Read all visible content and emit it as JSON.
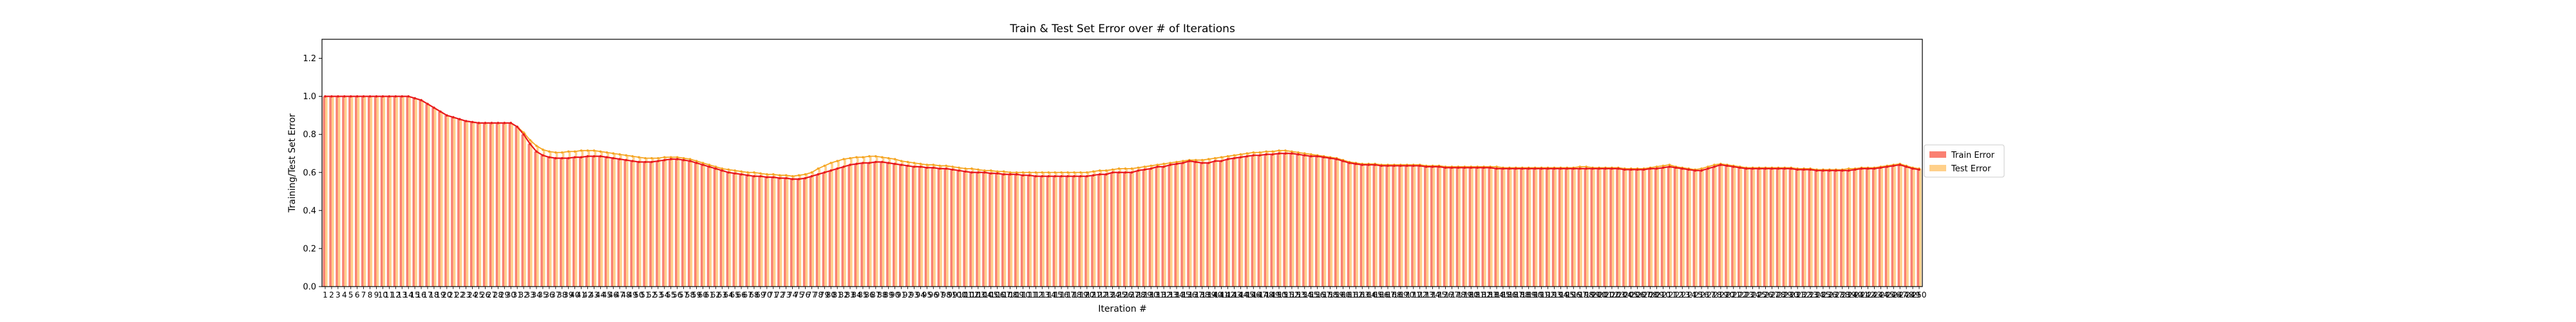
{
  "chart_data": {
    "type": "bar",
    "title": "Train & Test Set Error over # of Iterations",
    "xlabel": "Iteration #",
    "ylabel": "Training/Test Set Error",
    "ylim": [
      0,
      1.3
    ],
    "yticks": [
      "0.0",
      "0.2",
      "0.4",
      "0.6",
      "0.8",
      "1.0",
      "1.2"
    ],
    "grid": false,
    "legend_position": "right",
    "categories_range": [
      1,
      250
    ],
    "series": [
      {
        "name": "Train Error",
        "bar_color": "#fa8072",
        "line_color": "#e8191e",
        "values": [
          1.0,
          1.0,
          1.0,
          1.0,
          1.0,
          1.0,
          1.0,
          1.0,
          1.0,
          1.0,
          1.0,
          1.0,
          1.0,
          1.0,
          0.99,
          0.98,
          0.96,
          0.94,
          0.92,
          0.9,
          0.89,
          0.88,
          0.87,
          0.865,
          0.86,
          0.86,
          0.86,
          0.86,
          0.86,
          0.86,
          0.84,
          0.8,
          0.75,
          0.71,
          0.69,
          0.68,
          0.675,
          0.675,
          0.675,
          0.68,
          0.68,
          0.685,
          0.685,
          0.685,
          0.68,
          0.675,
          0.67,
          0.665,
          0.66,
          0.655,
          0.655,
          0.655,
          0.66,
          0.665,
          0.67,
          0.67,
          0.665,
          0.66,
          0.65,
          0.64,
          0.63,
          0.62,
          0.61,
          0.6,
          0.595,
          0.59,
          0.585,
          0.58,
          0.58,
          0.575,
          0.575,
          0.57,
          0.57,
          0.565,
          0.565,
          0.57,
          0.58,
          0.59,
          0.6,
          0.61,
          0.62,
          0.63,
          0.64,
          0.645,
          0.65,
          0.65,
          0.655,
          0.655,
          0.65,
          0.645,
          0.64,
          0.635,
          0.63,
          0.63,
          0.625,
          0.625,
          0.62,
          0.62,
          0.615,
          0.61,
          0.605,
          0.6,
          0.6,
          0.6,
          0.595,
          0.595,
          0.59,
          0.59,
          0.59,
          0.585,
          0.585,
          0.58,
          0.58,
          0.58,
          0.58,
          0.58,
          0.58,
          0.58,
          0.58,
          0.58,
          0.585,
          0.59,
          0.59,
          0.6,
          0.6,
          0.6,
          0.6,
          0.61,
          0.615,
          0.62,
          0.63,
          0.63,
          0.64,
          0.645,
          0.65,
          0.66,
          0.655,
          0.65,
          0.65,
          0.66,
          0.66,
          0.67,
          0.675,
          0.68,
          0.685,
          0.69,
          0.69,
          0.695,
          0.695,
          0.7,
          0.7,
          0.7,
          0.695,
          0.69,
          0.685,
          0.685,
          0.68,
          0.675,
          0.67,
          0.66,
          0.65,
          0.645,
          0.64,
          0.64,
          0.64,
          0.635,
          0.635,
          0.635,
          0.635,
          0.635,
          0.635,
          0.635,
          0.63,
          0.63,
          0.63,
          0.625,
          0.625,
          0.625,
          0.625,
          0.625,
          0.625,
          0.625,
          0.625,
          0.62,
          0.62,
          0.62,
          0.62,
          0.62,
          0.62,
          0.62,
          0.62,
          0.62,
          0.62,
          0.62,
          0.62,
          0.62,
          0.62,
          0.62,
          0.62,
          0.62,
          0.62,
          0.62,
          0.62,
          0.615,
          0.615,
          0.615,
          0.615,
          0.62,
          0.62,
          0.625,
          0.63,
          0.625,
          0.62,
          0.615,
          0.61,
          0.61,
          0.62,
          0.63,
          0.64,
          0.635,
          0.63,
          0.625,
          0.62,
          0.62,
          0.62,
          0.62,
          0.62,
          0.62,
          0.62,
          0.62,
          0.615,
          0.615,
          0.615,
          0.61,
          0.61,
          0.61,
          0.61,
          0.61,
          0.61,
          0.615,
          0.62,
          0.62,
          0.62,
          0.625,
          0.63,
          0.635,
          0.64,
          0.63,
          0.62,
          0.615
        ]
      },
      {
        "name": "Test Error",
        "bar_color": "#ffd08a",
        "line_color": "#f5a623",
        "values": [
          1.0,
          1.0,
          1.0,
          1.0,
          1.0,
          1.0,
          1.0,
          1.0,
          1.0,
          1.0,
          1.0,
          1.0,
          1.0,
          1.0,
          0.99,
          0.98,
          0.96,
          0.94,
          0.92,
          0.9,
          0.89,
          0.88,
          0.87,
          0.865,
          0.86,
          0.86,
          0.86,
          0.86,
          0.86,
          0.86,
          0.84,
          0.81,
          0.77,
          0.74,
          0.72,
          0.71,
          0.705,
          0.705,
          0.71,
          0.71,
          0.715,
          0.715,
          0.715,
          0.71,
          0.705,
          0.7,
          0.695,
          0.69,
          0.685,
          0.68,
          0.675,
          0.675,
          0.675,
          0.68,
          0.68,
          0.68,
          0.675,
          0.67,
          0.66,
          0.65,
          0.64,
          0.63,
          0.62,
          0.615,
          0.61,
          0.605,
          0.6,
          0.6,
          0.595,
          0.59,
          0.59,
          0.585,
          0.585,
          0.58,
          0.585,
          0.59,
          0.6,
          0.62,
          0.635,
          0.65,
          0.66,
          0.67,
          0.675,
          0.68,
          0.68,
          0.685,
          0.685,
          0.68,
          0.675,
          0.67,
          0.66,
          0.655,
          0.65,
          0.645,
          0.64,
          0.64,
          0.635,
          0.635,
          0.63,
          0.625,
          0.62,
          0.62,
          0.615,
          0.61,
          0.61,
          0.605,
          0.605,
          0.6,
          0.6,
          0.6,
          0.6,
          0.6,
          0.6,
          0.6,
          0.6,
          0.6,
          0.6,
          0.6,
          0.6,
          0.6,
          0.605,
          0.61,
          0.61,
          0.615,
          0.62,
          0.62,
          0.62,
          0.625,
          0.63,
          0.635,
          0.64,
          0.645,
          0.65,
          0.655,
          0.66,
          0.665,
          0.665,
          0.665,
          0.67,
          0.675,
          0.68,
          0.685,
          0.69,
          0.695,
          0.7,
          0.705,
          0.705,
          0.71,
          0.71,
          0.715,
          0.715,
          0.71,
          0.705,
          0.7,
          0.695,
          0.69,
          0.685,
          0.68,
          0.675,
          0.665,
          0.655,
          0.65,
          0.645,
          0.645,
          0.645,
          0.64,
          0.64,
          0.64,
          0.64,
          0.64,
          0.64,
          0.64,
          0.635,
          0.635,
          0.635,
          0.63,
          0.63,
          0.63,
          0.63,
          0.63,
          0.63,
          0.63,
          0.63,
          0.63,
          0.625,
          0.625,
          0.625,
          0.625,
          0.625,
          0.625,
          0.625,
          0.625,
          0.625,
          0.625,
          0.625,
          0.625,
          0.63,
          0.63,
          0.625,
          0.625,
          0.625,
          0.625,
          0.625,
          0.62,
          0.62,
          0.62,
          0.62,
          0.625,
          0.63,
          0.635,
          0.64,
          0.63,
          0.625,
          0.62,
          0.615,
          0.62,
          0.63,
          0.64,
          0.645,
          0.64,
          0.635,
          0.63,
          0.625,
          0.625,
          0.625,
          0.625,
          0.625,
          0.625,
          0.625,
          0.625,
          0.62,
          0.62,
          0.62,
          0.615,
          0.615,
          0.615,
          0.615,
          0.615,
          0.62,
          0.62,
          0.625,
          0.625,
          0.625,
          0.63,
          0.635,
          0.64,
          0.645,
          0.635,
          0.625,
          0.62
        ]
      }
    ]
  }
}
